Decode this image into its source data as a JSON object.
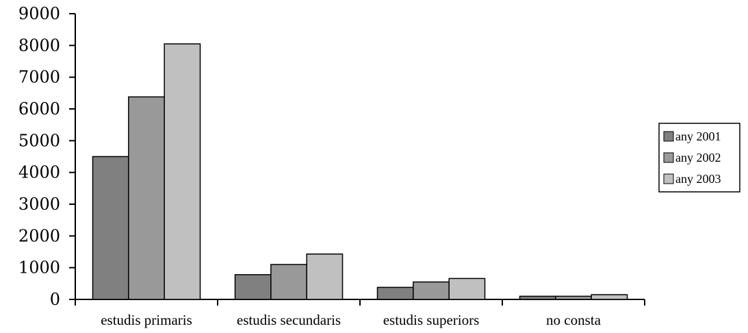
{
  "chart_data": {
    "type": "bar",
    "categories": [
      "estudis primaris",
      "estudis secundaris",
      "estudis superiors",
      "no consta"
    ],
    "series": [
      {
        "name": "any 2001",
        "values": [
          4500,
          780,
          380,
          100
        ],
        "color": "#808080"
      },
      {
        "name": "any 2002",
        "values": [
          6380,
          1100,
          550,
          100
        ],
        "color": "#999999"
      },
      {
        "name": "any 2003",
        "values": [
          8050,
          1430,
          660,
          150
        ],
        "color": "#c0c0c0"
      }
    ],
    "title": "",
    "xlabel": "",
    "ylabel": "",
    "ylim": [
      0,
      9000
    ],
    "yticks": [
      "0",
      "1000",
      "2000",
      "3000",
      "4000",
      "5000",
      "6000",
      "7000",
      "8000",
      "9000"
    ],
    "grid": false,
    "legend": "right"
  }
}
